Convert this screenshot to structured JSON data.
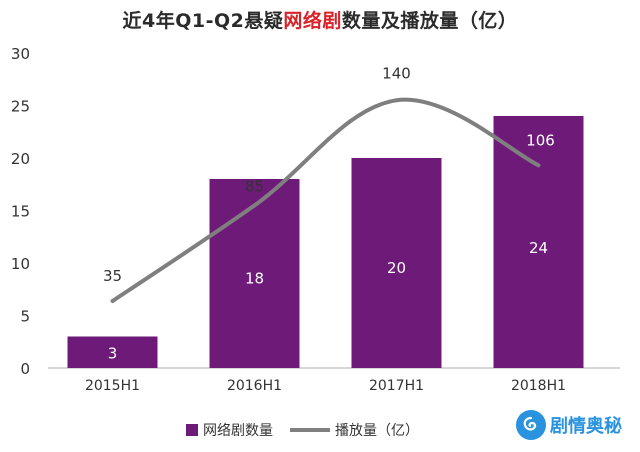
{
  "chart_data": {
    "type": "bar",
    "title_parts": [
      "近4年Q1-Q2悬疑",
      "网络剧",
      "数量及播放量（亿）"
    ],
    "categories": [
      "2015H1",
      "2016H1",
      "2017H1",
      "2018H1"
    ],
    "ylim": [
      0,
      30
    ],
    "yticks": [
      0,
      5,
      10,
      15,
      20,
      25,
      30
    ],
    "series": [
      {
        "name": "网络剧数量",
        "type": "bar",
        "values": [
          3,
          18,
          20,
          24
        ],
        "color": "#6e1a78"
      },
      {
        "name": "播放量（亿）",
        "type": "line",
        "values": [
          35,
          85,
          140,
          106
        ],
        "color": "#7f7f7f"
      }
    ],
    "grid": false,
    "legend_position": "bottom-center"
  },
  "watermark": {
    "text": "剧情奥秘",
    "icon": "swirl-logo-icon",
    "color": "#2a93e0"
  }
}
